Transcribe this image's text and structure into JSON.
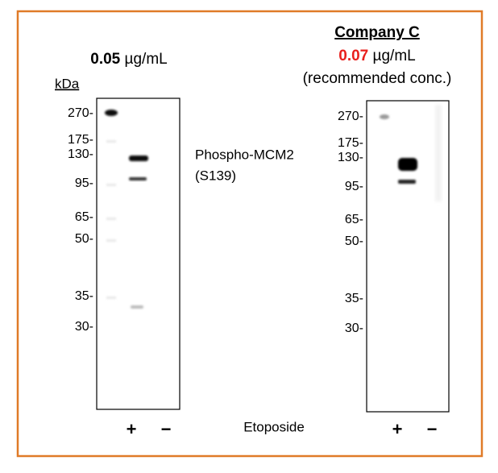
{
  "left_panel": {
    "concentration": "0.05",
    "unit": " µg/mL",
    "kda_label": "kDa",
    "markers": [
      "270-",
      "175-",
      "130-",
      "95-",
      "65-",
      "50-",
      "35-",
      "30-"
    ],
    "lanes": [
      "+",
      "−"
    ]
  },
  "antibody": {
    "name": "Phospho-MCM2",
    "site": "(S139)"
  },
  "treatment": "Etoposide",
  "right_panel": {
    "company": "Company C",
    "concentration": "0.07",
    "unit": " µg/mL",
    "note": "(recommended conc.)",
    "markers": [
      "270-",
      "175-",
      "130-",
      "95-",
      "65-",
      "50-",
      "35-",
      "30-"
    ],
    "lanes": [
      "+",
      "−"
    ]
  }
}
